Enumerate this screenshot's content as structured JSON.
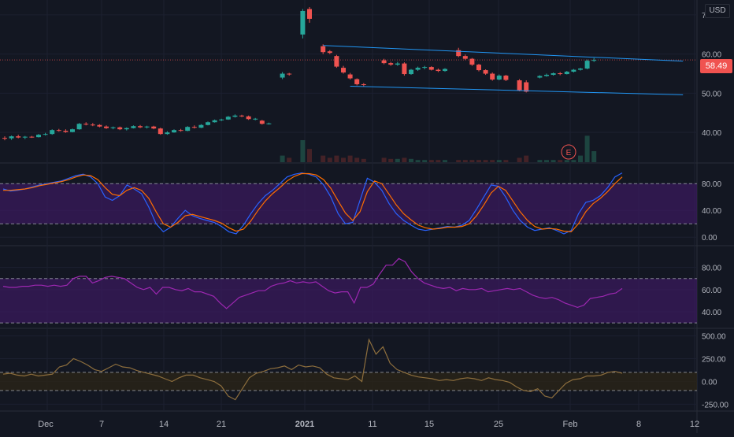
{
  "currency": "USD",
  "last_price": "58.49",
  "earnings_marker": "E",
  "colors": {
    "background": "#131722",
    "up": "#26a69a",
    "down": "#ef5350",
    "channel": "#2196f3",
    "stoch_k": "#2962ff",
    "stoch_d": "#ff6d00",
    "rsi": "#9c27b0",
    "cci": "#8d6e3d",
    "band_fill": "#3a1a5c"
  },
  "x_axis_labels": [
    "Dec",
    "7",
    "14",
    "21",
    "2021",
    "11",
    "15",
    "25",
    "Feb",
    "8",
    "12"
  ],
  "chart_data": [
    {
      "type": "candlestick",
      "panel": "price",
      "y_ticks": [
        "70.00",
        "60.00",
        "50.00",
        "40.00"
      ],
      "ylim": [
        33,
        73
      ],
      "last_price": 58.49,
      "candles": [
        {
          "o": 38.6,
          "h": 39.0,
          "l": 38.0,
          "c": 38.4
        },
        {
          "o": 38.5,
          "h": 39.2,
          "l": 38.1,
          "c": 39.0
        },
        {
          "o": 39.0,
          "h": 39.4,
          "l": 38.5,
          "c": 38.7
        },
        {
          "o": 38.7,
          "h": 39.1,
          "l": 38.3,
          "c": 38.9
        },
        {
          "o": 38.9,
          "h": 39.1,
          "l": 38.6,
          "c": 38.8
        },
        {
          "o": 38.8,
          "h": 39.6,
          "l": 38.7,
          "c": 39.4
        },
        {
          "o": 39.4,
          "h": 39.9,
          "l": 39.2,
          "c": 39.6
        },
        {
          "o": 39.6,
          "h": 40.8,
          "l": 39.4,
          "c": 40.6
        },
        {
          "o": 40.6,
          "h": 40.9,
          "l": 40.2,
          "c": 40.4
        },
        {
          "o": 40.4,
          "h": 40.8,
          "l": 39.9,
          "c": 40.1
        },
        {
          "o": 40.1,
          "h": 41.0,
          "l": 40.0,
          "c": 40.8
        },
        {
          "o": 40.8,
          "h": 42.4,
          "l": 40.7,
          "c": 42.2
        },
        {
          "o": 42.2,
          "h": 42.6,
          "l": 41.8,
          "c": 42.0
        },
        {
          "o": 42.0,
          "h": 42.4,
          "l": 41.6,
          "c": 41.9
        },
        {
          "o": 41.9,
          "h": 42.1,
          "l": 41.3,
          "c": 41.5
        },
        {
          "o": 41.5,
          "h": 41.8,
          "l": 40.9,
          "c": 41.1
        },
        {
          "o": 41.1,
          "h": 41.5,
          "l": 40.8,
          "c": 41.3
        },
        {
          "o": 41.3,
          "h": 41.5,
          "l": 40.6,
          "c": 40.8
        },
        {
          "o": 40.8,
          "h": 41.3,
          "l": 40.5,
          "c": 41.1
        },
        {
          "o": 41.1,
          "h": 41.8,
          "l": 41.0,
          "c": 41.6
        },
        {
          "o": 41.6,
          "h": 41.9,
          "l": 41.1,
          "c": 41.3
        },
        {
          "o": 41.3,
          "h": 41.7,
          "l": 41.0,
          "c": 41.5
        },
        {
          "o": 41.5,
          "h": 41.7,
          "l": 40.8,
          "c": 41.0
        },
        {
          "o": 41.0,
          "h": 41.2,
          "l": 39.4,
          "c": 39.6
        },
        {
          "o": 39.6,
          "h": 40.3,
          "l": 39.4,
          "c": 40.0
        },
        {
          "o": 40.0,
          "h": 40.8,
          "l": 39.9,
          "c": 40.6
        },
        {
          "o": 40.6,
          "h": 40.9,
          "l": 40.2,
          "c": 40.4
        },
        {
          "o": 40.4,
          "h": 41.6,
          "l": 40.3,
          "c": 41.4
        },
        {
          "o": 41.4,
          "h": 41.8,
          "l": 41.0,
          "c": 41.2
        },
        {
          "o": 41.2,
          "h": 42.1,
          "l": 41.1,
          "c": 41.9
        },
        {
          "o": 41.9,
          "h": 42.8,
          "l": 41.8,
          "c": 42.6
        },
        {
          "o": 42.6,
          "h": 43.3,
          "l": 42.5,
          "c": 43.1
        },
        {
          "o": 43.1,
          "h": 43.5,
          "l": 42.9,
          "c": 43.3
        },
        {
          "o": 43.3,
          "h": 44.2,
          "l": 43.2,
          "c": 44.0
        },
        {
          "o": 44.0,
          "h": 44.6,
          "l": 43.8,
          "c": 44.3
        },
        {
          "o": 44.3,
          "h": 44.5,
          "l": 43.9,
          "c": 44.1
        },
        {
          "o": 44.1,
          "h": 44.3,
          "l": 43.2,
          "c": 43.4
        },
        {
          "o": 43.4,
          "h": 43.7,
          "l": 43.1,
          "c": 43.5
        },
        {
          "o": 43.0,
          "h": 43.2,
          "l": 42.0,
          "c": 42.2
        },
        {
          "o": 42.2,
          "h": 42.5,
          "l": 42.0,
          "c": 42.3
        },
        {
          "o": null,
          "h": null,
          "l": null,
          "c": null
        },
        {
          "o": 54.0,
          "h": 55.4,
          "l": 53.6,
          "c": 55.0
        },
        {
          "o": 55.0,
          "h": 55.2,
          "l": 54.5,
          "c": 54.9
        },
        {
          "o": null,
          "h": null,
          "l": null,
          "c": null
        },
        {
          "o": 65.0,
          "h": 71.5,
          "l": 64.0,
          "c": 71.0
        },
        {
          "o": 71.5,
          "h": 72.0,
          "l": 68.0,
          "c": 69.0
        },
        {
          "o": null,
          "h": null,
          "l": null,
          "c": null
        },
        {
          "o": 62.0,
          "h": 62.5,
          "l": 60.0,
          "c": 60.5
        },
        {
          "o": 60.7,
          "h": 61.0,
          "l": 60.0,
          "c": 60.3
        },
        {
          "o": 59.5,
          "h": 59.8,
          "l": 56.5,
          "c": 56.8
        },
        {
          "o": 56.5,
          "h": 57.0,
          "l": 55.0,
          "c": 55.3
        },
        {
          "o": 54.8,
          "h": 55.2,
          "l": 53.5,
          "c": 53.8
        },
        {
          "o": 53.6,
          "h": 53.8,
          "l": 52.0,
          "c": 52.3
        },
        {
          "o": 52.3,
          "h": 52.6,
          "l": 51.8,
          "c": 52.1
        },
        {
          "o": null,
          "h": null,
          "l": null,
          "c": null
        },
        {
          "o": null,
          "h": null,
          "l": null,
          "c": null
        },
        {
          "o": 58.4,
          "h": 58.8,
          "l": 57.4,
          "c": 57.7
        },
        {
          "o": 57.7,
          "h": 58.0,
          "l": 57.0,
          "c": 57.3
        },
        {
          "o": 57.3,
          "h": 58.0,
          "l": 57.0,
          "c": 57.6
        },
        {
          "o": 57.6,
          "h": 57.9,
          "l": 54.5,
          "c": 54.9
        },
        {
          "o": 54.9,
          "h": 56.2,
          "l": 54.7,
          "c": 56.0
        },
        {
          "o": 56.0,
          "h": 56.8,
          "l": 55.7,
          "c": 56.5
        },
        {
          "o": 56.5,
          "h": 57.0,
          "l": 56.1,
          "c": 56.7
        },
        {
          "o": 56.7,
          "h": 56.9,
          "l": 55.8,
          "c": 56.0
        },
        {
          "o": 56.0,
          "h": 56.3,
          "l": 55.4,
          "c": 55.7
        },
        {
          "o": 55.7,
          "h": 56.4,
          "l": 55.5,
          "c": 56.2
        },
        {
          "o": null,
          "h": null,
          "l": null,
          "c": null
        },
        {
          "o": 61.0,
          "h": 61.6,
          "l": 59.2,
          "c": 59.5
        },
        {
          "o": 59.5,
          "h": 59.9,
          "l": 58.5,
          "c": 58.8
        },
        {
          "o": 58.8,
          "h": 59.0,
          "l": 57.0,
          "c": 57.3
        },
        {
          "o": 57.3,
          "h": 57.5,
          "l": 55.6,
          "c": 55.9
        },
        {
          "o": 55.9,
          "h": 56.1,
          "l": 54.7,
          "c": 55.0
        },
        {
          "o": 55.0,
          "h": 55.3,
          "l": 53.2,
          "c": 53.5
        },
        {
          "o": 53.5,
          "h": 54.8,
          "l": 53.3,
          "c": 54.5
        },
        {
          "o": 54.5,
          "h": 54.7,
          "l": 53.1,
          "c": 53.4
        },
        {
          "o": null,
          "h": null,
          "l": null,
          "c": null
        },
        {
          "o": 53.3,
          "h": 53.6,
          "l": 50.5,
          "c": 50.8
        },
        {
          "o": 52.8,
          "h": 53.3,
          "l": 50.2,
          "c": 50.4
        },
        {
          "o": null,
          "h": null,
          "l": null,
          "c": null
        },
        {
          "o": 54.0,
          "h": 54.6,
          "l": 53.8,
          "c": 54.4
        },
        {
          "o": 54.4,
          "h": 55.0,
          "l": 54.2,
          "c": 54.7
        },
        {
          "o": 54.7,
          "h": 55.3,
          "l": 54.5,
          "c": 55.1
        },
        {
          "o": 55.1,
          "h": 55.4,
          "l": 54.6,
          "c": 54.9
        },
        {
          "o": 54.9,
          "h": 55.7,
          "l": 54.8,
          "c": 55.5
        },
        {
          "o": 55.5,
          "h": 56.2,
          "l": 55.3,
          "c": 56.0
        },
        {
          "o": 56.0,
          "h": 56.5,
          "l": 55.8,
          "c": 56.3
        },
        {
          "o": 56.3,
          "h": 58.6,
          "l": 56.1,
          "c": 58.3
        },
        {
          "o": 58.3,
          "h": 59.0,
          "l": 58.0,
          "c": 58.49
        }
      ],
      "channel": [
        {
          "from": {
            "i": 47,
            "v": 62.2
          },
          "to": {
            "i": 92,
            "v": 57.6
          }
        },
        {
          "from": {
            "i": 51,
            "v": 51.8
          },
          "to": {
            "i": 92,
            "v": 49.2
          }
        }
      ],
      "volume": [
        0,
        0,
        0,
        0,
        0,
        0,
        0,
        0,
        0,
        0,
        0,
        0,
        0,
        0,
        0,
        0,
        0,
        0,
        0,
        0,
        0,
        0,
        0,
        0,
        0,
        0,
        0,
        0,
        0,
        0,
        0,
        0,
        0,
        0,
        0,
        0,
        0,
        0,
        0,
        0,
        0,
        0.3,
        0.2,
        0,
        1,
        0.6,
        0,
        0.3,
        0.2,
        0.3,
        0.2,
        0.3,
        0.2,
        0.15,
        0,
        0,
        0.2,
        0.15,
        0.15,
        0.2,
        0.15,
        0.1,
        0.1,
        0.1,
        0.1,
        0.1,
        0,
        0.1,
        0.1,
        0.1,
        0.1,
        0.1,
        0.1,
        0.1,
        0.1,
        0,
        0.2,
        0.3,
        0,
        0.1,
        0.1,
        0.1,
        0.1,
        0.1,
        0.1,
        0.3,
        1.2,
        0.5
      ]
    },
    {
      "type": "line",
      "panel": "stochastic",
      "y_ticks": [
        "80.00",
        "40.00",
        "0.00"
      ],
      "ylim": [
        -8,
        105
      ],
      "bands": [
        20,
        80
      ],
      "series": [
        {
          "values": [
            72,
            69,
            70,
            72,
            75,
            78,
            80,
            82,
            84,
            88,
            92,
            94,
            90,
            80,
            60,
            55,
            62,
            78,
            72,
            65,
            45,
            20,
            8,
            15,
            28,
            40,
            32,
            28,
            25,
            22,
            16,
            8,
            5,
            18,
            35,
            50,
            62,
            70,
            80,
            90,
            94,
            96,
            94,
            90,
            78,
            60,
            35,
            20,
            22,
            55,
            88,
            82,
            70,
            50,
            35,
            25,
            18,
            12,
            10,
            12,
            14,
            16,
            15,
            18,
            25,
            42,
            60,
            78,
            76,
            60,
            40,
            25,
            15,
            10,
            12,
            14,
            10,
            5,
            10,
            35,
            52,
            55,
            62,
            74,
            90,
            96
          ]
        },
        {
          "values": [
            70,
            70,
            71,
            72,
            74,
            77,
            79,
            81,
            83,
            86,
            90,
            93,
            92,
            86,
            74,
            64,
            62,
            70,
            74,
            70,
            58,
            38,
            20,
            15,
            22,
            32,
            34,
            31,
            28,
            25,
            21,
            14,
            9,
            12,
            24,
            40,
            54,
            65,
            74,
            84,
            91,
            95,
            95,
            93,
            86,
            73,
            54,
            36,
            25,
            38,
            68,
            84,
            80,
            64,
            48,
            35,
            26,
            18,
            14,
            12,
            13,
            15,
            15,
            16,
            20,
            32,
            48,
            66,
            76,
            70,
            54,
            38,
            25,
            16,
            12,
            13,
            12,
            9,
            8,
            20,
            38,
            50,
            58,
            68,
            80,
            90
          ]
        }
      ]
    },
    {
      "type": "line",
      "panel": "rsi",
      "y_ticks": [
        "80.00",
        "60.00",
        "40.00"
      ],
      "ylim": [
        28,
        96
      ],
      "bands": [
        30,
        70
      ],
      "series": [
        {
          "values": [
            63,
            62,
            62,
            63,
            63,
            64,
            64,
            63,
            64,
            63,
            64,
            70,
            72,
            72,
            66,
            68,
            71,
            72,
            71,
            70,
            66,
            62,
            60,
            62,
            56,
            62,
            62,
            60,
            59,
            61,
            58,
            58,
            56,
            54,
            48,
            43,
            48,
            53,
            55,
            57,
            59,
            59,
            63,
            65,
            66,
            68,
            66,
            67,
            66,
            67,
            63,
            59,
            57,
            58,
            58,
            48,
            62,
            62,
            65,
            74,
            82,
            82,
            88,
            85,
            76,
            70,
            66,
            64,
            62,
            61,
            62,
            59,
            61,
            60,
            60,
            61,
            58,
            59,
            60,
            61,
            60,
            61,
            58,
            55,
            53,
            52,
            53,
            51,
            48,
            46,
            44,
            46,
            52,
            53,
            54,
            56,
            57,
            61
          ]
        }
      ]
    },
    {
      "type": "line",
      "panel": "cci",
      "y_ticks": [
        "500.00",
        "250.00",
        "0.00",
        "-250.00"
      ],
      "ylim": [
        -290,
        540
      ],
      "bands": [
        -100,
        100
      ],
      "series": [
        {
          "values": [
            80,
            90,
            70,
            60,
            80,
            60,
            70,
            80,
            160,
            180,
            250,
            220,
            180,
            130,
            110,
            150,
            190,
            160,
            150,
            120,
            100,
            80,
            60,
            30,
            0,
            40,
            70,
            70,
            40,
            20,
            0,
            -50,
            -160,
            -200,
            -80,
            40,
            90,
            110,
            140,
            150,
            170,
            130,
            180,
            160,
            170,
            150,
            80,
            40,
            30,
            20,
            60,
            0,
            460,
            300,
            380,
            200,
            130,
            100,
            70,
            50,
            40,
            30,
            10,
            20,
            10,
            30,
            40,
            30,
            10,
            40,
            20,
            10,
            -10,
            -60,
            -100,
            -110,
            -80,
            -160,
            -180,
            -100,
            -20,
            20,
            30,
            60,
            60,
            70,
            100,
            110,
            90
          ]
        }
      ]
    }
  ]
}
